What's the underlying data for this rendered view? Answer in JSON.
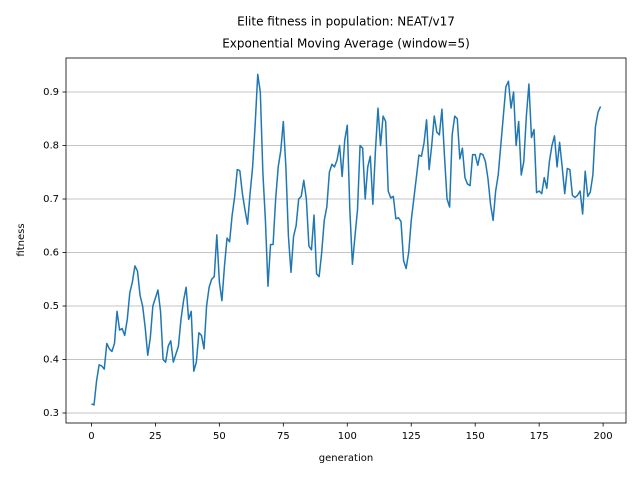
{
  "chart_data": {
    "type": "line",
    "title": "Elite fitness in population: NEAT/v17",
    "subtitle": "Exponential Moving Average (window=5)",
    "x_label": "generation",
    "y_label": "fitness",
    "xlim": [
      -9.95,
      208.95
    ],
    "ylim": [
      0.2813,
      0.9636
    ],
    "xticks": [
      0,
      25,
      50,
      75,
      100,
      125,
      150,
      175,
      200
    ],
    "yticks": [
      0.3,
      0.4,
      0.5,
      0.6,
      0.7,
      0.8,
      0.9
    ],
    "grid": "y",
    "x": [
      0,
      1,
      2,
      3,
      4,
      5,
      6,
      7,
      8,
      9,
      10,
      11,
      12,
      13,
      14,
      15,
      16,
      17,
      18,
      19,
      20,
      21,
      22,
      23,
      24,
      25,
      26,
      27,
      28,
      29,
      30,
      31,
      32,
      33,
      34,
      35,
      36,
      37,
      38,
      39,
      40,
      41,
      42,
      43,
      44,
      45,
      46,
      47,
      48,
      49,
      50,
      51,
      52,
      53,
      54,
      55,
      56,
      57,
      58,
      59,
      60,
      61,
      62,
      63,
      64,
      65,
      66,
      67,
      68,
      69,
      70,
      71,
      72,
      73,
      74,
      75,
      76,
      77,
      78,
      79,
      80,
      81,
      82,
      83,
      84,
      85,
      86,
      87,
      88,
      89,
      90,
      91,
      92,
      93,
      94,
      95,
      96,
      97,
      98,
      99,
      100,
      101,
      102,
      103,
      104,
      105,
      106,
      107,
      108,
      109,
      110,
      111,
      112,
      113,
      114,
      115,
      116,
      117,
      118,
      119,
      120,
      121,
      122,
      123,
      124,
      125,
      126,
      127,
      128,
      129,
      130,
      131,
      132,
      133,
      134,
      135,
      136,
      137,
      138,
      139,
      140,
      141,
      142,
      143,
      144,
      145,
      146,
      147,
      148,
      149,
      150,
      151,
      152,
      153,
      154,
      155,
      156,
      157,
      158,
      159,
      160,
      161,
      162,
      163,
      164,
      165,
      166,
      167,
      168,
      169,
      170,
      171,
      172,
      173,
      174,
      175,
      176,
      177,
      178,
      179,
      180,
      181,
      182,
      183,
      184,
      185,
      186,
      187,
      188,
      189,
      190,
      191,
      192,
      193,
      194,
      195,
      196,
      197,
      198,
      199
    ],
    "series": [
      {
        "color": "#1f77b4",
        "values": [
          0.317,
          0.315,
          0.36,
          0.39,
          0.388,
          0.382,
          0.43,
          0.42,
          0.415,
          0.43,
          0.49,
          0.455,
          0.458,
          0.445,
          0.475,
          0.525,
          0.545,
          0.575,
          0.565,
          0.52,
          0.5,
          0.46,
          0.408,
          0.44,
          0.5,
          0.515,
          0.53,
          0.49,
          0.4,
          0.395,
          0.425,
          0.435,
          0.395,
          0.41,
          0.425,
          0.475,
          0.51,
          0.535,
          0.475,
          0.49,
          0.378,
          0.395,
          0.45,
          0.445,
          0.42,
          0.5,
          0.535,
          0.55,
          0.555,
          0.633,
          0.545,
          0.51,
          0.575,
          0.627,
          0.62,
          0.67,
          0.705,
          0.755,
          0.753,
          0.71,
          0.68,
          0.653,
          0.71,
          0.76,
          0.84,
          0.933,
          0.9,
          0.75,
          0.66,
          0.537,
          0.615,
          0.615,
          0.7,
          0.76,
          0.79,
          0.845,
          0.76,
          0.63,
          0.563,
          0.63,
          0.65,
          0.7,
          0.705,
          0.735,
          0.7,
          0.612,
          0.605,
          0.67,
          0.56,
          0.555,
          0.6,
          0.66,
          0.685,
          0.75,
          0.765,
          0.76,
          0.773,
          0.8,
          0.742,
          0.81,
          0.838,
          0.68,
          0.578,
          0.63,
          0.68,
          0.8,
          0.795,
          0.7,
          0.76,
          0.78,
          0.69,
          0.79,
          0.87,
          0.8,
          0.855,
          0.845,
          0.715,
          0.702,
          0.705,
          0.663,
          0.665,
          0.658,
          0.585,
          0.57,
          0.6,
          0.66,
          0.7,
          0.74,
          0.782,
          0.78,
          0.805,
          0.848,
          0.755,
          0.8,
          0.855,
          0.825,
          0.82,
          0.868,
          0.78,
          0.7,
          0.685,
          0.82,
          0.855,
          0.85,
          0.775,
          0.795,
          0.74,
          0.728,
          0.725,
          0.783,
          0.783,
          0.763,
          0.785,
          0.783,
          0.77,
          0.738,
          0.69,
          0.66,
          0.715,
          0.745,
          0.8,
          0.855,
          0.91,
          0.92,
          0.87,
          0.9,
          0.8,
          0.845,
          0.745,
          0.77,
          0.855,
          0.915,
          0.815,
          0.83,
          0.712,
          0.715,
          0.71,
          0.74,
          0.72,
          0.77,
          0.8,
          0.818,
          0.76,
          0.806,
          0.76,
          0.71,
          0.757,
          0.755,
          0.707,
          0.703,
          0.707,
          0.715,
          0.672,
          0.752,
          0.705,
          0.713,
          0.745,
          0.835,
          0.862,
          0.873
        ]
      }
    ]
  }
}
